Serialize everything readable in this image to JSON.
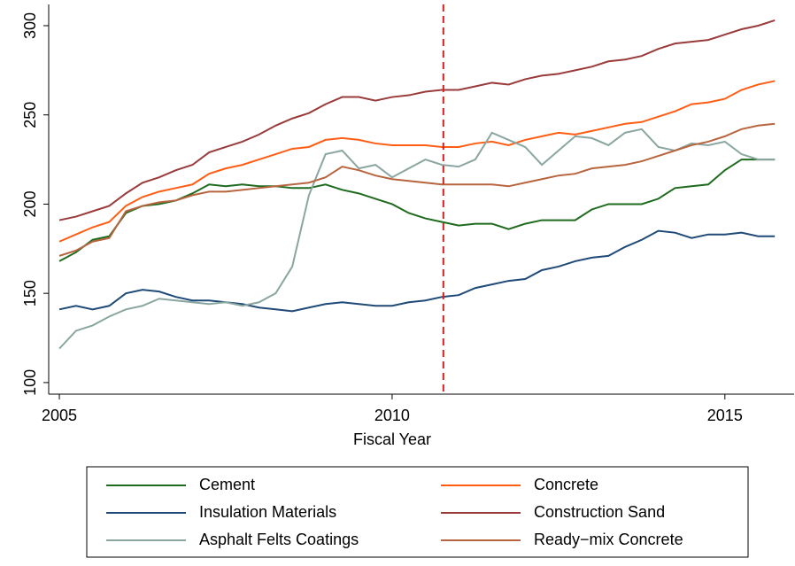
{
  "chart_data": {
    "type": "line",
    "xlabel": "Fiscal Year",
    "x": [
      2005,
      2005.25,
      2005.5,
      2005.75,
      2006,
      2006.25,
      2006.5,
      2006.75,
      2007,
      2007.25,
      2007.5,
      2007.75,
      2008,
      2008.25,
      2008.5,
      2008.75,
      2009,
      2009.25,
      2009.5,
      2009.75,
      2010,
      2010.25,
      2010.5,
      2010.75,
      2011,
      2011.25,
      2011.5,
      2011.75,
      2012,
      2012.25,
      2012.5,
      2012.75,
      2013,
      2013.25,
      2013.5,
      2013.75,
      2014,
      2014.25,
      2014.5,
      2014.75,
      2015,
      2015.25,
      2015.5,
      2015.75
    ],
    "series": [
      {
        "name": "Cement",
        "color": "#1e6b1e",
        "values": [
          168,
          173,
          180,
          182,
          195,
          199,
          200,
          202,
          206,
          211,
          210,
          211,
          210,
          210,
          209,
          209,
          211,
          208,
          206,
          203,
          200,
          195,
          192,
          190,
          188,
          189,
          189,
          186,
          189,
          191,
          191,
          191,
          197,
          200,
          200,
          200,
          203,
          209,
          210,
          211,
          219,
          225,
          225,
          225
        ]
      },
      {
        "name": "Concrete",
        "color": "#ff5d14",
        "values": [
          179,
          183,
          187,
          190,
          199,
          204,
          207,
          209,
          211,
          217,
          220,
          222,
          225,
          228,
          231,
          232,
          236,
          237,
          236,
          234,
          233,
          233,
          233,
          232,
          232,
          234,
          235,
          233,
          236,
          238,
          240,
          239,
          241,
          243,
          245,
          246,
          249,
          252,
          256,
          257,
          259,
          264,
          267,
          269
        ]
      },
      {
        "name": "Insulation Materials",
        "color": "#1f4a78",
        "values": [
          141,
          143,
          141,
          143,
          150,
          152,
          151,
          148,
          146,
          146,
          145,
          144,
          142,
          141,
          140,
          142,
          144,
          145,
          144,
          143,
          143,
          145,
          146,
          148,
          149,
          153,
          155,
          157,
          158,
          163,
          165,
          168,
          170,
          171,
          176,
          180,
          185,
          184,
          181,
          183,
          183,
          184,
          182,
          182
        ]
      },
      {
        "name": "Construction Sand",
        "color": "#9a3b3b",
        "values": [
          191,
          193,
          196,
          199,
          206,
          212,
          215,
          219,
          222,
          229,
          232,
          235,
          239,
          244,
          248,
          251,
          256,
          260,
          260,
          258,
          260,
          261,
          263,
          264,
          264,
          266,
          268,
          267,
          270,
          272,
          273,
          275,
          277,
          280,
          281,
          283,
          287,
          290,
          291,
          292,
          295,
          298,
          300,
          303
        ]
      },
      {
        "name": "Asphalt Felts Coatings",
        "color": "#8aa6a0",
        "values": [
          119,
          129,
          132,
          137,
          141,
          143,
          147,
          146,
          145,
          144,
          145,
          143,
          145,
          150,
          165,
          205,
          228,
          230,
          220,
          222,
          215,
          220,
          225,
          222,
          221,
          225,
          240,
          236,
          232,
          222,
          230,
          238,
          237,
          233,
          240,
          242,
          232,
          230,
          234,
          233,
          235,
          228,
          225,
          225
        ]
      },
      {
        "name": "Ready−mix Concrete",
        "color": "#b8653f",
        "values": [
          171,
          174,
          179,
          181,
          196,
          199,
          201,
          202,
          205,
          207,
          207,
          208,
          209,
          210,
          211,
          212,
          215,
          221,
          219,
          216,
          214,
          213,
          212,
          211,
          211,
          211,
          211,
          210,
          212,
          214,
          216,
          217,
          220,
          221,
          222,
          224,
          227,
          230,
          233,
          235,
          238,
          242,
          244,
          245
        ]
      }
    ],
    "xlim": [
      2004.84,
      2016.04
    ],
    "xticks": [
      2005,
      2010,
      2015
    ],
    "ylim": [
      93.5,
      311.9
    ],
    "yticks": [
      100,
      150,
      200,
      250,
      300
    ],
    "vline": {
      "x": 2010.77,
      "color": "#d62020"
    },
    "grid": false,
    "legend": "bottom"
  }
}
